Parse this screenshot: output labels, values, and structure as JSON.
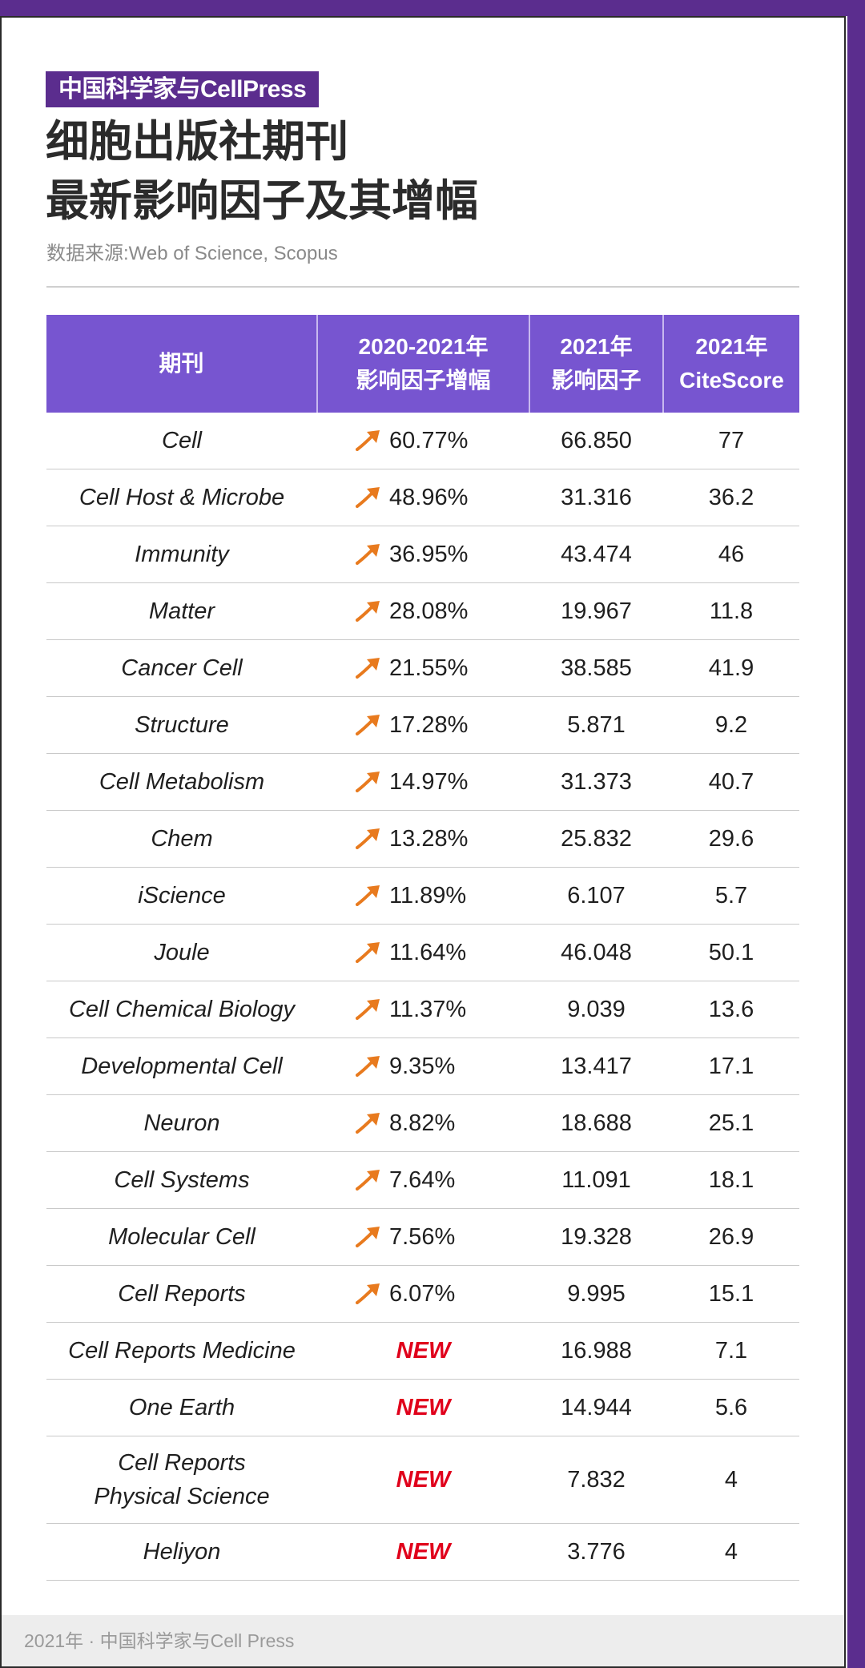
{
  "header": {
    "brand": "中国科学家与CellPress",
    "title_line1": "细胞出版社期刊",
    "title_line2": "最新影响因子及其增幅",
    "source": "数据来源:Web of Science, Scopus"
  },
  "table": {
    "headers": {
      "journal": "期刊",
      "growth_line1": "2020-2021年",
      "growth_line2": "影响因子增幅",
      "if_line1": "2021年",
      "if_line2": "影响因子",
      "cs_line1": "2021年",
      "cs_line2": "CiteScore"
    },
    "rows": [
      {
        "journal": "Cell",
        "growth": "60.77%",
        "impact_factor": "66.850",
        "citescore": "77"
      },
      {
        "journal": "Cell Host & Microbe",
        "growth": "48.96%",
        "impact_factor": "31.316",
        "citescore": "36.2"
      },
      {
        "journal": "Immunity",
        "growth": "36.95%",
        "impact_factor": "43.474",
        "citescore": "46"
      },
      {
        "journal": "Matter",
        "growth": "28.08%",
        "impact_factor": "19.967",
        "citescore": "11.8"
      },
      {
        "journal": "Cancer Cell",
        "growth": "21.55%",
        "impact_factor": "38.585",
        "citescore": "41.9"
      },
      {
        "journal": "Structure",
        "growth": "17.28%",
        "impact_factor": "5.871",
        "citescore": "9.2"
      },
      {
        "journal": "Cell Metabolism",
        "growth": "14.97%",
        "impact_factor": "31.373",
        "citescore": "40.7"
      },
      {
        "journal": "Chem",
        "growth": "13.28%",
        "impact_factor": "25.832",
        "citescore": "29.6"
      },
      {
        "journal": "iScience",
        "growth": "11.89%",
        "impact_factor": "6.107",
        "citescore": "5.7"
      },
      {
        "journal": "Joule",
        "growth": "11.64%",
        "impact_factor": "46.048",
        "citescore": "50.1"
      },
      {
        "journal": "Cell Chemical Biology",
        "growth": "11.37%",
        "impact_factor": "9.039",
        "citescore": "13.6"
      },
      {
        "journal": "Developmental Cell",
        "growth": "9.35%",
        "impact_factor": "13.417",
        "citescore": "17.1"
      },
      {
        "journal": "Neuron",
        "growth": "8.82%",
        "impact_factor": "18.688",
        "citescore": "25.1"
      },
      {
        "journal": "Cell Systems",
        "growth": "7.64%",
        "impact_factor": "11.091",
        "citescore": "18.1"
      },
      {
        "journal": "Molecular Cell",
        "growth": "7.56%",
        "impact_factor": "19.328",
        "citescore": "26.9"
      },
      {
        "journal": "Cell Reports",
        "growth": "6.07%",
        "impact_factor": "9.995",
        "citescore": "15.1"
      },
      {
        "journal": "Cell Reports Medicine",
        "growth": "NEW",
        "impact_factor": "16.988",
        "citescore": "7.1"
      },
      {
        "journal": "One Earth",
        "growth": "NEW",
        "impact_factor": "14.944",
        "citescore": "5.6"
      },
      {
        "journal_line1": "Cell Reports",
        "journal_line2": "Physical Science",
        "growth": "NEW",
        "impact_factor": "7.832",
        "citescore": "4"
      },
      {
        "journal": "Heliyon",
        "growth": "NEW",
        "impact_factor": "3.776",
        "citescore": "4"
      }
    ]
  },
  "footer": {
    "text": "2021年 · 中国科学家与Cell Press"
  },
  "colors": {
    "brand_purple": "#5b2d8e",
    "header_purple": "#7755d0",
    "arrow_orange": "#e87a1e",
    "new_red": "#e0001b"
  },
  "icons": {
    "growth_icon": "up-right-arrow-icon"
  }
}
